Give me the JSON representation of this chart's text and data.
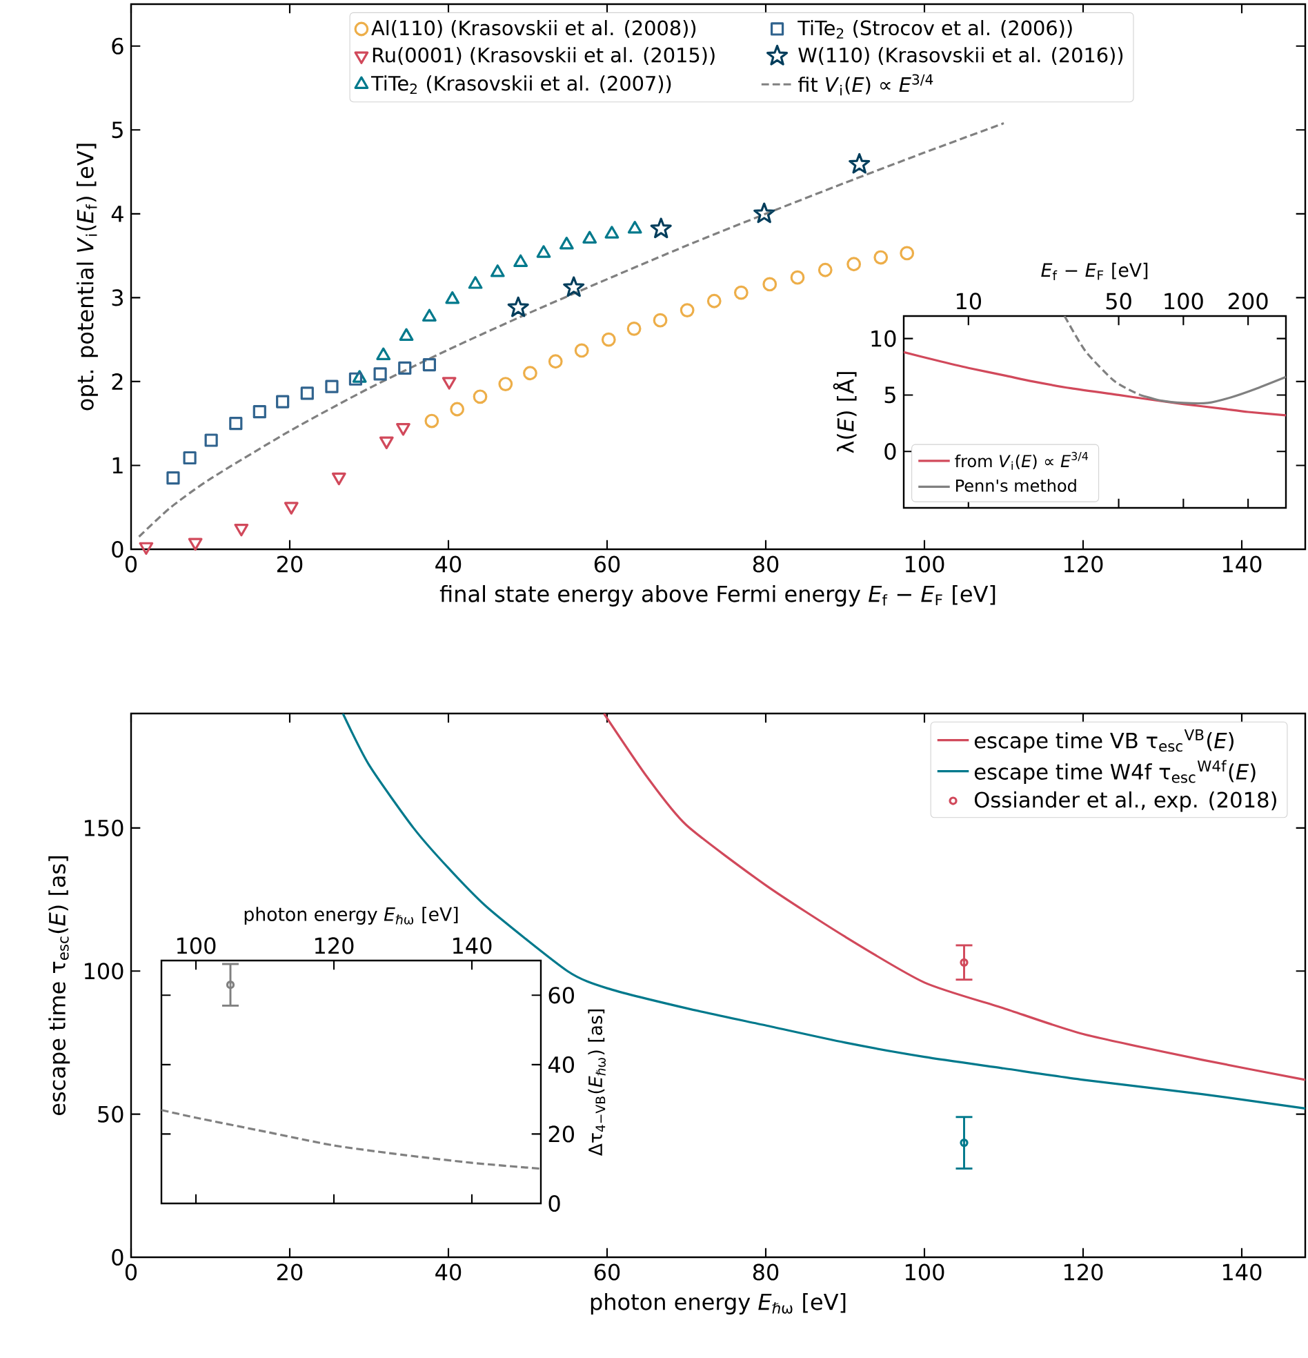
{
  "chart_data": [
    {
      "type": "scatter",
      "xlabel": "final state energy above Fermi energy *E*$_{f}$ − *E*$_{F}$ [eV]",
      "ylabel": "opt. potential *V*$_{i}$(*E*$_{f}$) [eV]",
      "xlim": [
        0,
        148
      ],
      "xticks": [
        0,
        20,
        40,
        60,
        80,
        100,
        120,
        140
      ],
      "ylim": [
        0,
        6.5
      ],
      "yticks": [
        0,
        1,
        2,
        3,
        4,
        5,
        6
      ],
      "legend": "top",
      "series": [
        {
          "name": "Al(110) (Krasovskii et al. (2008))",
          "color": "#edae49",
          "marker": "circle",
          "x": [
            37.9,
            41.1,
            44.0,
            47.2,
            50.3,
            53.5,
            56.8,
            60.2,
            63.4,
            66.7,
            70.1,
            73.5,
            76.9,
            80.5,
            84.0,
            87.5,
            91.1,
            94.5,
            97.8
          ],
          "values": [
            1.53,
            1.67,
            1.82,
            1.97,
            2.1,
            2.24,
            2.37,
            2.5,
            2.63,
            2.73,
            2.85,
            2.96,
            3.06,
            3.16,
            3.24,
            3.33,
            3.4,
            3.48,
            3.53
          ]
        },
        {
          "name": "Ru(0001) (Krasovskii et al. (2015))",
          "color": "#d1495b",
          "marker": "triangle_down",
          "x": [
            1.9,
            8.1,
            13.9,
            20.2,
            26.2,
            32.2,
            34.3,
            40.1
          ],
          "values": [
            0.03,
            0.08,
            0.25,
            0.51,
            0.86,
            1.29,
            1.45,
            2.0
          ]
        },
        {
          "name": "TiTe$_{2}$ (Krasovskii et al. (2007))",
          "color": "#00798c",
          "marker": "triangle",
          "x": [
            28.8,
            31.8,
            34.7,
            37.6,
            40.5,
            43.4,
            46.2,
            49.1,
            52.0,
            54.9,
            57.8,
            60.6,
            63.5
          ],
          "values": [
            2.04,
            2.31,
            2.54,
            2.77,
            2.98,
            3.16,
            3.3,
            3.42,
            3.53,
            3.63,
            3.7,
            3.76,
            3.82
          ]
        },
        {
          "name": "TiTe$_{2}$ (Strocov et al. (2006))",
          "color": "#30638e",
          "marker": "square",
          "x": [
            5.3,
            7.4,
            10.1,
            13.2,
            16.2,
            19.1,
            22.2,
            25.3,
            28.3,
            31.4,
            34.5,
            37.6
          ],
          "values": [
            0.85,
            1.09,
            1.3,
            1.5,
            1.64,
            1.76,
            1.86,
            1.94,
            2.03,
            2.09,
            2.16,
            2.2
          ]
        },
        {
          "name": "W(110) (Krasovskii et al. (2016))",
          "color": "#003d5b",
          "marker": "star",
          "x": [
            48.8,
            55.8,
            66.8,
            79.8,
            91.8
          ],
          "values": [
            2.88,
            3.12,
            3.82,
            4.0,
            4.59
          ]
        },
        {
          "name": "fit *V*$_{i}$(*E*) ∝ *E*$^{3/4}$",
          "type": "line",
          "color": "#808080",
          "marker": "none",
          "line_style": "dashed",
          "x": [
            1,
            5,
            10,
            20,
            30,
            40,
            50,
            60,
            70,
            80,
            90,
            100,
            110
          ],
          "values": [
            0.15,
            0.5,
            0.84,
            1.41,
            1.92,
            2.38,
            2.81,
            3.22,
            3.62,
            4.0,
            4.37,
            4.73,
            5.08
          ]
        }
      ]
    },
    {
      "type": "line",
      "log": "x",
      "xlabel": "*E*$_{f}$ − *E*$_{F}$ [eV]",
      "ylabel": "λ(*E*) [Å]",
      "xlim": [
        5,
        300
      ],
      "xticks": [
        10,
        50,
        100,
        200
      ],
      "ylim": [
        -5,
        12
      ],
      "yticks": [
        0,
        5,
        10
      ],
      "legend": "bottom left",
      "series": [
        {
          "name": "from *V*$_{i}$(*E*) ∝ *E*$^{3/4}$",
          "color": "#d1495b",
          "x": [
            5,
            7,
            10,
            15,
            20,
            30,
            50,
            70,
            100,
            150,
            200,
            300
          ],
          "values": [
            8.8,
            8.1,
            7.4,
            6.7,
            6.2,
            5.6,
            5.0,
            4.6,
            4.2,
            3.8,
            3.5,
            3.2
          ]
        },
        {
          "name": "Penn's method",
          "color": "#808080",
          "x": [
            63,
            79,
            100,
            130,
            167,
            214,
            300
          ],
          "values": [
            5.0,
            4.5,
            4.3,
            4.3,
            4.8,
            5.5,
            6.6
          ]
        },
        {
          "color": "#808080",
          "line_style": "dashed",
          "x": [
            28,
            35,
            48,
            63
          ],
          "values": [
            12,
            8.9,
            6.2,
            5.0
          ]
        }
      ]
    },
    {
      "type": "line",
      "xlabel": "photon energy *E*$_{ℏω}$ [eV]",
      "ylabel": "escape time τ$_{esc}$(*E*) [as]",
      "xlim": [
        0,
        148
      ],
      "xticks": [
        0,
        20,
        40,
        60,
        80,
        100,
        120,
        140
      ],
      "ylim": [
        0,
        190
      ],
      "yticks": [
        0,
        50,
        100,
        150
      ],
      "legend": "top right",
      "series": [
        {
          "name": "escape time VB τ$_{esc}$$^{VB}$(*E*)",
          "color": "#d1495b",
          "x": [
            59.6,
            65,
            70,
            80,
            90,
            100,
            110,
            120,
            135,
            148
          ],
          "values": [
            190,
            168,
            151,
            130,
            112,
            96,
            87,
            78,
            69,
            62
          ]
        },
        {
          "name": "escape time W4f τ$_{esc}$$^{W4f}$(*E*)",
          "color": "#00798c",
          "x": [
            26.7,
            30,
            35.6,
            40,
            45,
            55,
            60,
            70,
            80,
            90,
            100,
            110,
            120,
            135,
            148
          ],
          "values": [
            190,
            172,
            150,
            136,
            122,
            100,
            94,
            87,
            81,
            75,
            70,
            66,
            62,
            57,
            52
          ]
        },
        {
          "name": "Ossiander et al., exp. (2018)",
          "type": "scatter",
          "marker": "circle",
          "color": "#d1495b",
          "x": [
            105
          ],
          "values": [
            103
          ],
          "errors": [
            [
              97,
              109
            ]
          ]
        },
        {
          "type": "scatter",
          "marker": "circle",
          "color": "#00798c",
          "x": [
            105
          ],
          "values": [
            40
          ],
          "errors": [
            [
              31,
              49
            ]
          ]
        }
      ]
    },
    {
      "type": "line",
      "xlabel": "photon energy *E*$_{ℏω}$ [eV]",
      "ylabel": "Δτ$_{4−VB}$(*E*$_{ℏω}$) [as]",
      "xlim": [
        95,
        150
      ],
      "xticks": [
        100,
        120,
        140
      ],
      "ylim": [
        0,
        70
      ],
      "yticks": [
        0,
        20,
        40,
        60
      ],
      "series": [
        {
          "color": "#808080",
          "line_style": "dashed",
          "x": [
            95,
            100,
            110,
            120,
            130,
            140,
            150
          ],
          "values": [
            26.9,
            24.7,
            20.7,
            16.7,
            14,
            11.7,
            10
          ]
        },
        {
          "type": "scatter",
          "marker": "circle",
          "color": "#808080",
          "x": [
            105
          ],
          "values": [
            63
          ],
          "errors": [
            [
              57,
              69
            ]
          ]
        }
      ]
    }
  ]
}
